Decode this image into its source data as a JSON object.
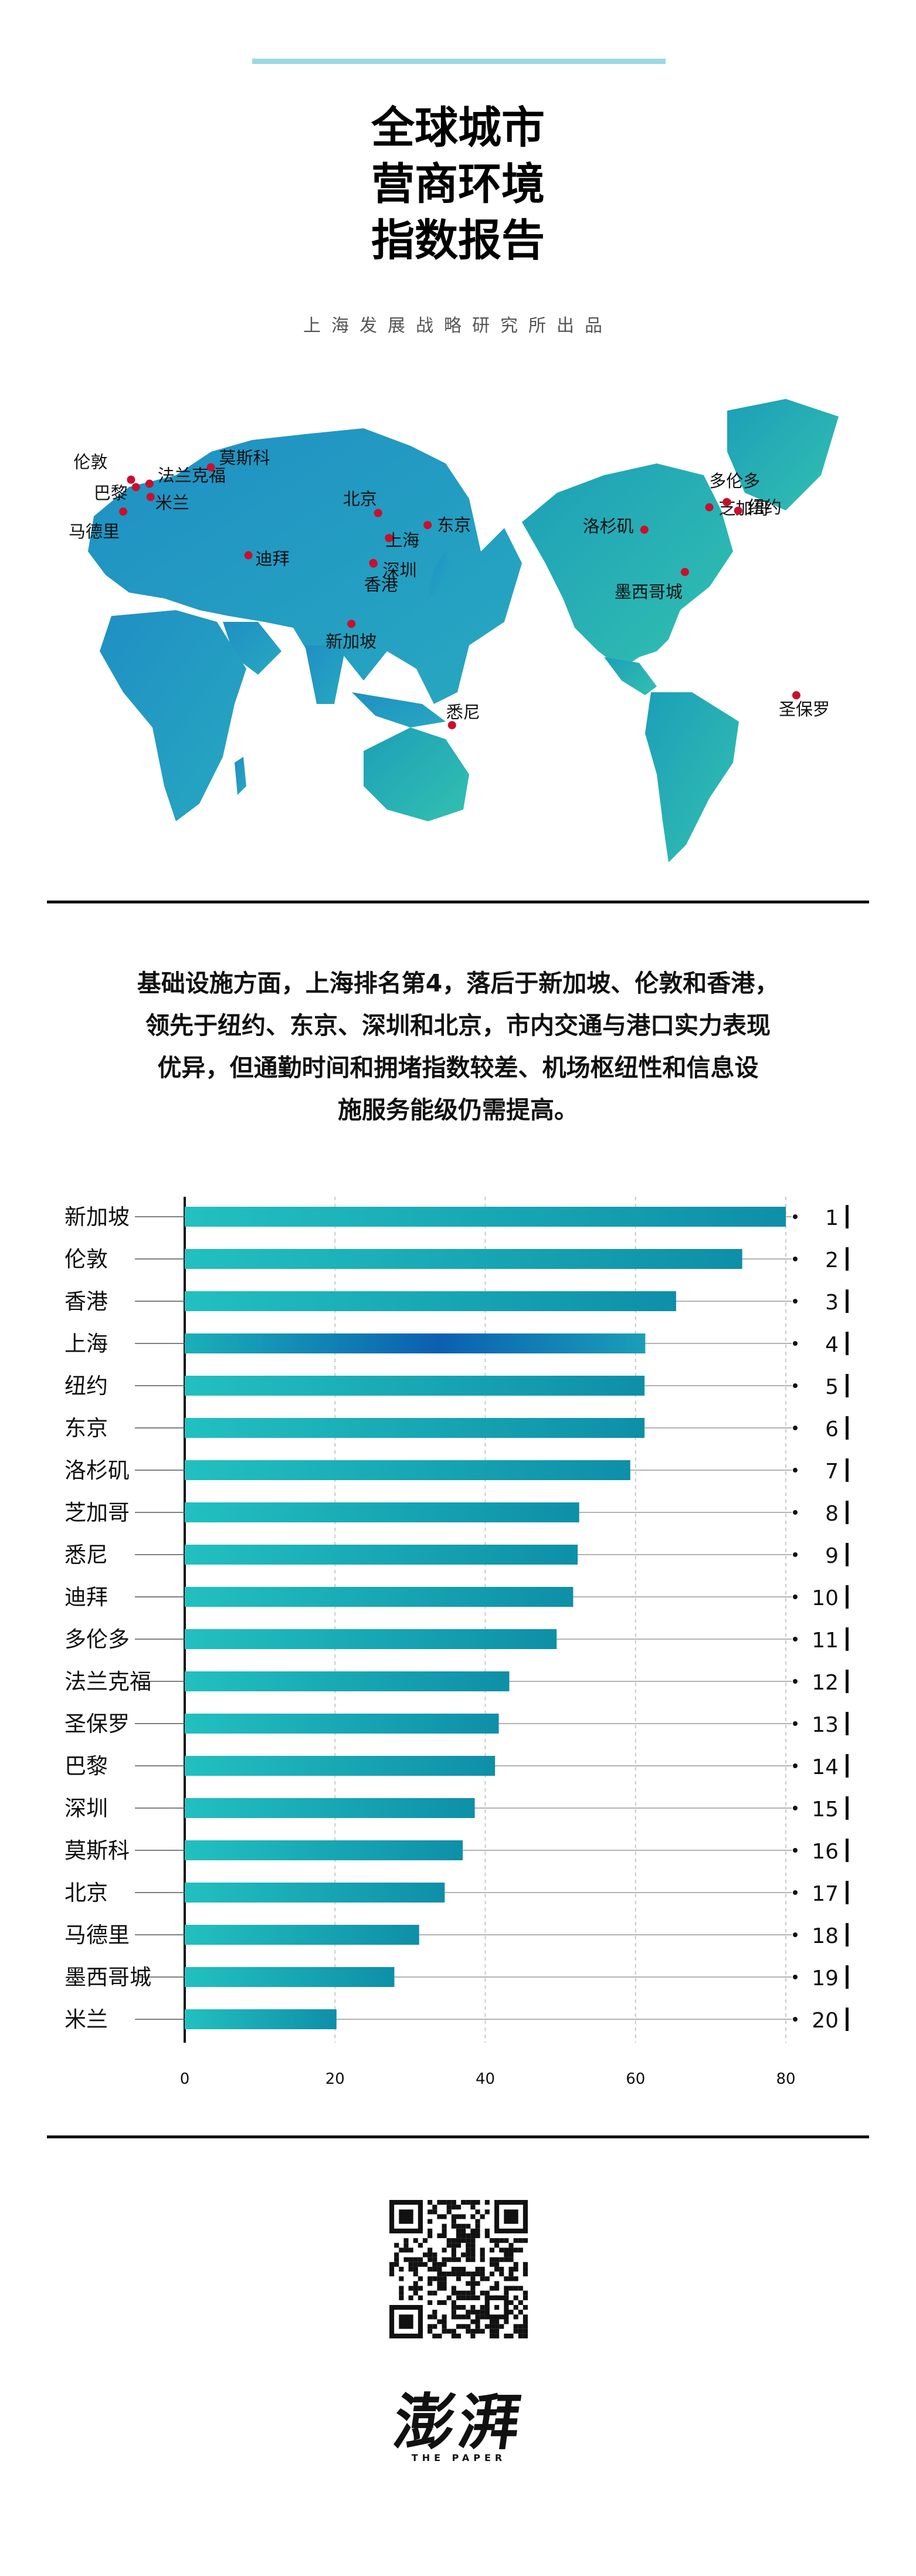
{
  "header": {
    "title_lines": [
      "全球城市",
      "营商环境",
      "指数报告"
    ],
    "subtitle": "上海发展战略研究所出品"
  },
  "map": {
    "cities": [
      {
        "name": "伦敦",
        "lon": 0,
        "lat": 51.5
      },
      {
        "name": "法兰克福",
        "lon": 8.7,
        "lat": 50.1
      },
      {
        "name": "巴黎",
        "lon": 2.3,
        "lat": 48.9
      },
      {
        "name": "米兰",
        "lon": 9.2,
        "lat": 45.5
      },
      {
        "name": "马德里",
        "lon": -3.7,
        "lat": 40.4
      },
      {
        "name": "莫斯科",
        "lon": 37.6,
        "lat": 55.8
      },
      {
        "name": "迪拜",
        "lon": 55.3,
        "lat": 25.2
      },
      {
        "name": "北京",
        "lon": 116.4,
        "lat": 39.9
      },
      {
        "name": "上海",
        "lon": 121.5,
        "lat": 31.2
      },
      {
        "name": "东京",
        "lon": 139.7,
        "lat": 35.7
      },
      {
        "name": "深圳",
        "lon": 114.1,
        "lat": 22.5
      },
      {
        "name": "香港",
        "lon": 114.2,
        "lat": 22.3
      },
      {
        "name": "新加坡",
        "lon": 103.8,
        "lat": 1.35
      },
      {
        "name": "悉尼",
        "lon": 151.2,
        "lat": -33.9
      },
      {
        "name": "洛杉矶",
        "lon": -118.2,
        "lat": 34.1
      },
      {
        "name": "芝加哥",
        "lon": -87.6,
        "lat": 41.9
      },
      {
        "name": "多伦多",
        "lon": -79.4,
        "lat": 43.7
      },
      {
        "name": "纽约",
        "lon": -74.0,
        "lat": 40.7
      },
      {
        "name": "墨西哥城",
        "lon": -99.1,
        "lat": 19.4
      },
      {
        "name": "圣保罗",
        "lon": -46.6,
        "lat": -23.5
      }
    ],
    "colors": {
      "land_west": "#1f8fc4",
      "land_east": "#2bb3b3",
      "marker": "#c8102e"
    }
  },
  "summary": {
    "lines": [
      "基础设施方面，上海排名第4，落后于新加坡、伦敦和香港，",
      "领先于纽约、东京、深圳和北京，市内交通与港口实力表现",
      "优异，但通勤时间和拥堵指数较差、机场枢纽性和信息设",
      "施服务能级仍需提高。"
    ]
  },
  "chart_data": {
    "type": "bar",
    "orientation": "horizontal",
    "categories": [
      "新加坡",
      "伦敦",
      "香港",
      "上海",
      "纽约",
      "东京",
      "洛杉矶",
      "芝加哥",
      "悉尼",
      "迪拜",
      "多伦多",
      "法兰克福",
      "圣保罗",
      "巴黎",
      "深圳",
      "莫斯科",
      "北京",
      "马德里",
      "墨西哥城",
      "米兰"
    ],
    "values": [
      80,
      74.2,
      65.4,
      61.3,
      61.2,
      61.2,
      59.3,
      52.5,
      52.3,
      51.7,
      49.5,
      43.2,
      41.8,
      41.3,
      38.6,
      37.0,
      34.6,
      31.2,
      27.9,
      20.2
    ],
    "ranks": [
      "1",
      "2",
      "3",
      "4",
      "5",
      "6",
      "7",
      "8",
      "9",
      "10",
      "11",
      "12",
      "13",
      "14",
      "15",
      "16",
      "17",
      "18",
      "19",
      "20"
    ],
    "xlim": [
      0,
      80
    ],
    "xticks": [
      "0",
      "20",
      "40",
      "60",
      "80"
    ],
    "grid": "vertical-dashed",
    "highlight": "上海",
    "colors": {
      "bar": "#1ab0b8",
      "bar_end": "#0e8aa8",
      "highlight": "#0d5fae"
    }
  },
  "footer": {
    "logo_cn": "澎湃",
    "logo_en": "THE PAPER"
  }
}
